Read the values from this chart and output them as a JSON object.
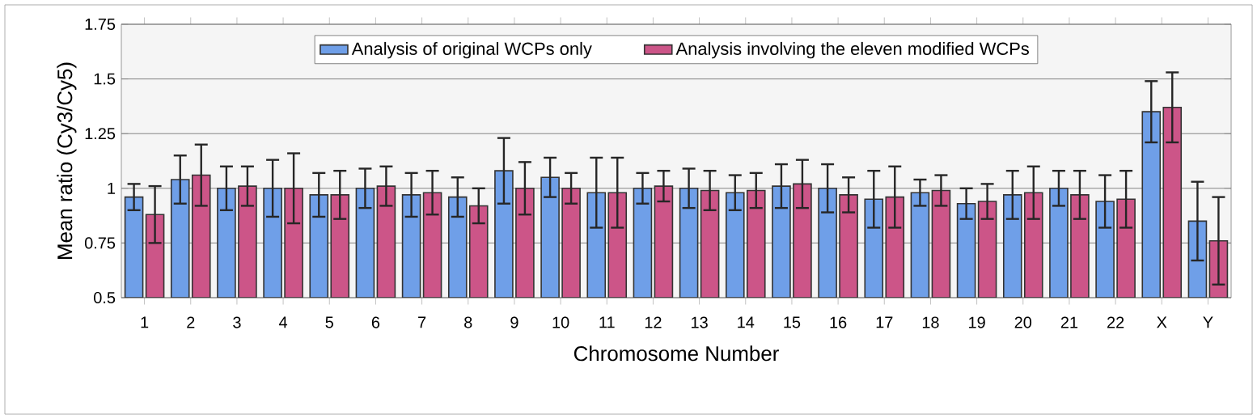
{
  "chart_data": {
    "type": "bar",
    "xlabel": "Chromosome Number",
    "ylabel": "Mean ratio (Cy3/Cy5)",
    "categories": [
      "1",
      "2",
      "3",
      "4",
      "5",
      "6",
      "7",
      "8",
      "9",
      "10",
      "11",
      "12",
      "13",
      "14",
      "15",
      "16",
      "17",
      "18",
      "19",
      "20",
      "21",
      "22",
      "X",
      "Y"
    ],
    "series": [
      {
        "name": "Analysis of original WCPs only",
        "color": "#6f9fe8",
        "values": [
          0.96,
          1.04,
          1.0,
          1.0,
          0.97,
          1.0,
          0.97,
          0.96,
          1.08,
          1.05,
          0.98,
          1.0,
          1.0,
          0.98,
          1.01,
          1.0,
          0.95,
          0.98,
          0.93,
          0.97,
          1.0,
          0.94,
          1.35,
          0.85
        ],
        "errors": [
          0.06,
          0.11,
          0.1,
          0.13,
          0.1,
          0.09,
          0.1,
          0.09,
          0.15,
          0.09,
          0.16,
          0.07,
          0.09,
          0.08,
          0.1,
          0.11,
          0.13,
          0.06,
          0.07,
          0.11,
          0.08,
          0.12,
          0.14,
          0.18
        ]
      },
      {
        "name": "Analysis involving the eleven modified WCPs",
        "color": "#cc5588",
        "values": [
          0.88,
          1.06,
          1.01,
          1.0,
          0.97,
          1.01,
          0.98,
          0.92,
          1.0,
          1.0,
          0.98,
          1.01,
          0.99,
          0.99,
          1.02,
          0.97,
          0.96,
          0.99,
          0.94,
          0.98,
          0.97,
          0.95,
          1.37,
          0.76
        ],
        "errors": [
          0.13,
          0.14,
          0.09,
          0.16,
          0.11,
          0.09,
          0.1,
          0.08,
          0.12,
          0.07,
          0.16,
          0.07,
          0.09,
          0.08,
          0.11,
          0.08,
          0.14,
          0.07,
          0.08,
          0.12,
          0.11,
          0.13,
          0.16,
          0.2
        ]
      }
    ],
    "ylim": [
      0.5,
      1.75
    ],
    "yticks": [
      0.5,
      0.75,
      1,
      1.25,
      1.5,
      1.75
    ],
    "grid": "y",
    "legend": "top"
  }
}
